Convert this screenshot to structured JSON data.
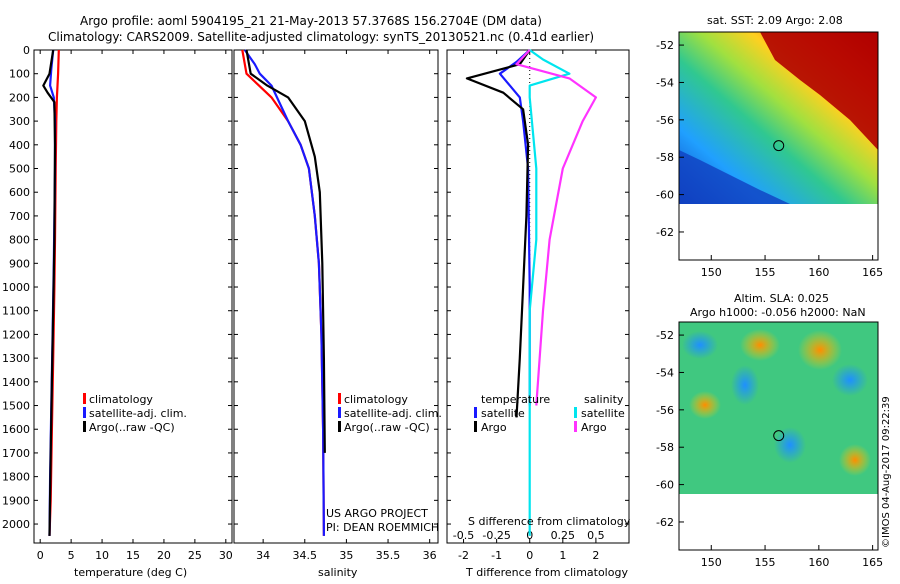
{
  "header": {
    "line1": "Argo profile: aoml 5904195_21 21-May-2013 57.3768S 156.2704E (DM data)",
    "line2": "Climatology: CARS2009. Satellite-adjusted climatology: synTS_20130521.nc (0.41d earlier)"
  },
  "side_stamp": "©IMOS 04-Aug-2017 09:22:39",
  "project": {
    "line1": "US ARGO PROJECT",
    "line2": "PI: DEAN ROEMMICH"
  },
  "colors": {
    "climatology": "#ff0000",
    "satellite": "#1a1aff",
    "argo": "#000000",
    "s_satellite": "#00e5ee",
    "s_argo": "#ff33ff"
  },
  "legend_profile": [
    "climatology",
    "satellite-adj. clim.",
    "Argo(..raw -QC)"
  ],
  "legend_diff": {
    "temperature_head": "temperature",
    "salinity_head": "salinity",
    "satellite": "satellite",
    "argo": "Argo"
  },
  "maps": {
    "sst": {
      "title": "sat. SST: 2.09 Argo: 2.08",
      "shading": "SST field"
    },
    "sla": {
      "title1": "Altim. SLA: 0.025",
      "title2": "Argo h1000: -0.056 h2000: NaN",
      "shading": "SLA field"
    },
    "x_ticks": [
      "150",
      "155",
      "160",
      "165"
    ],
    "y_ticks": [
      "-52",
      "-54",
      "-56",
      "-58",
      "-60",
      "-62"
    ],
    "float_marker": {
      "lon": 156.27,
      "lat": -57.38
    }
  },
  "chart_data": [
    {
      "type": "line",
      "xlabel": "temperature (deg C)",
      "xlim": [
        -1,
        31
      ],
      "ylim": [
        2080,
        0
      ],
      "x_ticks": [
        "0",
        "5",
        "10",
        "15",
        "20",
        "25",
        "30"
      ],
      "y_ticks": [
        "0",
        "100",
        "200",
        "300",
        "400",
        "500",
        "600",
        "700",
        "800",
        "900",
        "1000",
        "1100",
        "1200",
        "1300",
        "1400",
        "1500",
        "1600",
        "1700",
        "1800",
        "1900",
        "2000"
      ],
      "series": [
        {
          "name": "climatology",
          "color": "#ff0000",
          "x": [
            3.0,
            2.9,
            2.7,
            2.6,
            2.5,
            2.4,
            2.3,
            2.1,
            1.9,
            1.7,
            1.5
          ],
          "y": [
            0,
            100,
            200,
            300,
            500,
            800,
            1000,
            1300,
            1600,
            1900,
            2050
          ]
        },
        {
          "name": "satellite-adj. clim.",
          "color": "#1a1aff",
          "x": [
            2.1,
            1.8,
            1.6,
            2.2,
            2.4,
            2.4,
            2.2,
            2.0,
            1.8,
            1.6,
            1.5
          ],
          "y": [
            0,
            80,
            150,
            200,
            300,
            500,
            900,
            1200,
            1500,
            1800,
            2050
          ]
        },
        {
          "name": "Argo(..raw -QC)",
          "color": "#000000",
          "x": [
            2.1,
            1.5,
            0.5,
            1.2,
            2.3,
            2.4,
            2.3,
            2.1,
            1.9,
            1.7,
            1.5
          ],
          "y": [
            0,
            100,
            150,
            180,
            220,
            400,
            800,
            1100,
            1400,
            1700,
            2050
          ]
        }
      ]
    },
    {
      "type": "line",
      "xlabel": "salinity",
      "xlim": [
        33.65,
        36.1
      ],
      "ylim": [
        2080,
        0
      ],
      "x_ticks": [
        "34",
        "34.5",
        "35",
        "35.5",
        "36"
      ],
      "series": [
        {
          "name": "climatology",
          "color": "#ff0000",
          "x": [
            33.75,
            33.8,
            33.95,
            34.1,
            34.3,
            34.45,
            34.55,
            34.62,
            34.67,
            34.7,
            34.72,
            34.73
          ],
          "y": [
            0,
            100,
            150,
            200,
            300,
            400,
            500,
            700,
            900,
            1200,
            1600,
            2050
          ]
        },
        {
          "name": "satellite-adj. clim.",
          "color": "#1a1aff",
          "x": [
            33.78,
            33.9,
            33.96,
            34.1,
            34.3,
            34.45,
            34.55,
            34.62,
            34.67,
            34.7,
            34.72,
            34.73
          ],
          "y": [
            0,
            60,
            100,
            150,
            300,
            400,
            500,
            700,
            900,
            1200,
            1600,
            2050
          ]
        },
        {
          "name": "Argo(..raw -QC)",
          "color": "#000000",
          "x": [
            33.8,
            33.85,
            34.05,
            34.3,
            34.5,
            34.62,
            34.68,
            34.71,
            34.73,
            34.74
          ],
          "y": [
            0,
            100,
            150,
            200,
            300,
            450,
            600,
            900,
            1300,
            1700
          ]
        }
      ]
    },
    {
      "type": "line",
      "xlabel": "T difference from climatology",
      "xlabel2": "S difference from climatology",
      "xlim": [
        -2.5,
        3.0
      ],
      "ylim": [
        2080,
        0
      ],
      "x_ticks": [
        "-2",
        "-1",
        "0",
        "1",
        "2"
      ],
      "s_ticks": [
        "-0.5",
        "-0.25",
        "0",
        "0.25",
        "0.5"
      ],
      "series": [
        {
          "name": "satellite",
          "group": "temperature",
          "color": "#1a1aff",
          "x": [
            0,
            -0.4,
            -0.9,
            -0.3,
            -0.2,
            -0.05,
            0,
            0
          ],
          "y": [
            0,
            50,
            100,
            200,
            300,
            500,
            1000,
            1500
          ]
        },
        {
          "name": "Argo",
          "group": "temperature",
          "color": "#000000",
          "x": [
            0,
            -0.3,
            -1.9,
            -0.8,
            -0.2,
            -0.05,
            -0.1,
            -0.2,
            -0.3,
            -0.4
          ],
          "y": [
            0,
            60,
            120,
            180,
            250,
            400,
            700,
            1000,
            1300,
            1550
          ]
        },
        {
          "name": "satellite",
          "group": "salinity",
          "color": "#00e5ee",
          "x": [
            0,
            0.1,
            0.3,
            0,
            0,
            0.05,
            0.05,
            0,
            0
          ],
          "y": [
            0,
            40,
            100,
            150,
            200,
            500,
            800,
            1100,
            2050
          ]
        },
        {
          "name": "Argo",
          "group": "salinity",
          "color": "#ff33ff",
          "x": [
            0,
            -0.1,
            0.3,
            0.5,
            0.4,
            0.25,
            0.15,
            0.1,
            0.05
          ],
          "y": [
            0,
            60,
            120,
            200,
            300,
            500,
            800,
            1100,
            1500
          ]
        }
      ]
    }
  ]
}
